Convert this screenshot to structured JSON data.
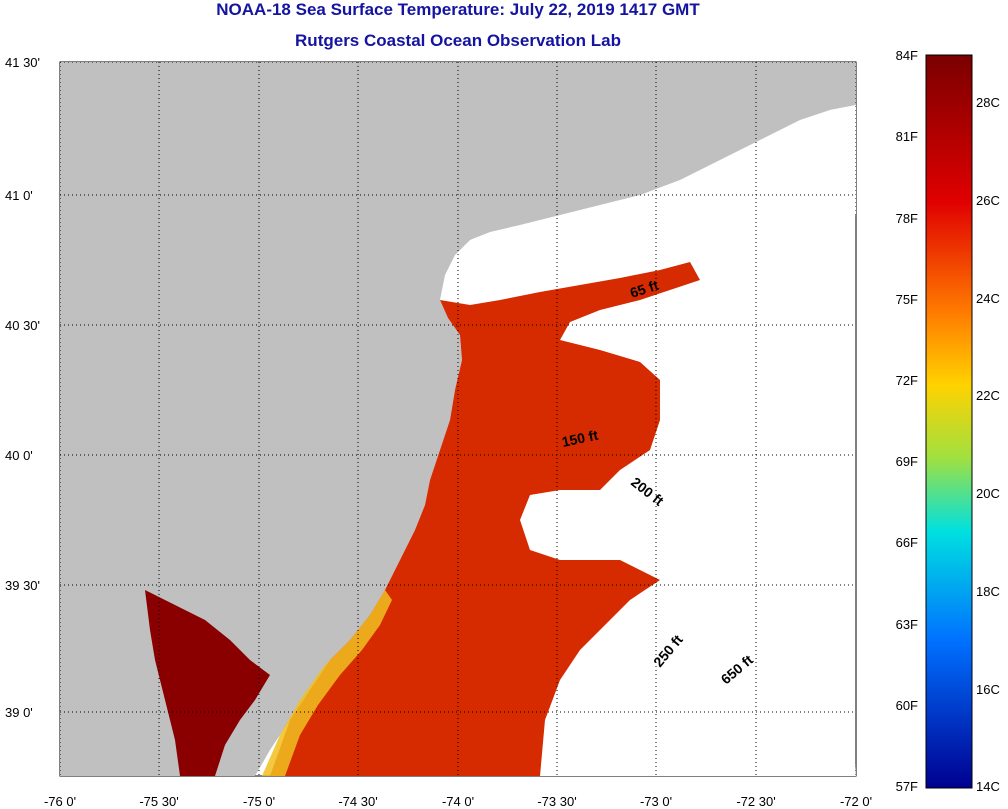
{
  "title": "NOAA-18 Sea Surface Temperature:  July 22, 2019 1417 GMT",
  "subtitle": "Rutgers Coastal Ocean Observation Lab",
  "map": {
    "lat_ticks": [
      "41 30'",
      "41 0'",
      "40 30'",
      "40 0'",
      "39 30'",
      "39 0'"
    ],
    "lon_ticks": [
      "-76 0'",
      "-75 30'",
      "-75 0'",
      "-74 30'",
      "-74 0'",
      "-73 30'",
      "-73 0'",
      "-72 30'",
      "-72 0'"
    ],
    "contour_labels": [
      "65 ft",
      "150 ft",
      "200 ft",
      "250 ft",
      "650 ft"
    ],
    "land_color": "#c0c0c0",
    "cloud_color": "#ffffff"
  },
  "colorbar": {
    "fahrenheit": [
      "84F",
      "81F",
      "78F",
      "75F",
      "72F",
      "69F",
      "66F",
      "63F",
      "60F",
      "57F"
    ],
    "celsius": [
      "28C",
      "26C",
      "24C",
      "22C",
      "20C",
      "18C",
      "16C",
      "14C"
    ]
  }
}
